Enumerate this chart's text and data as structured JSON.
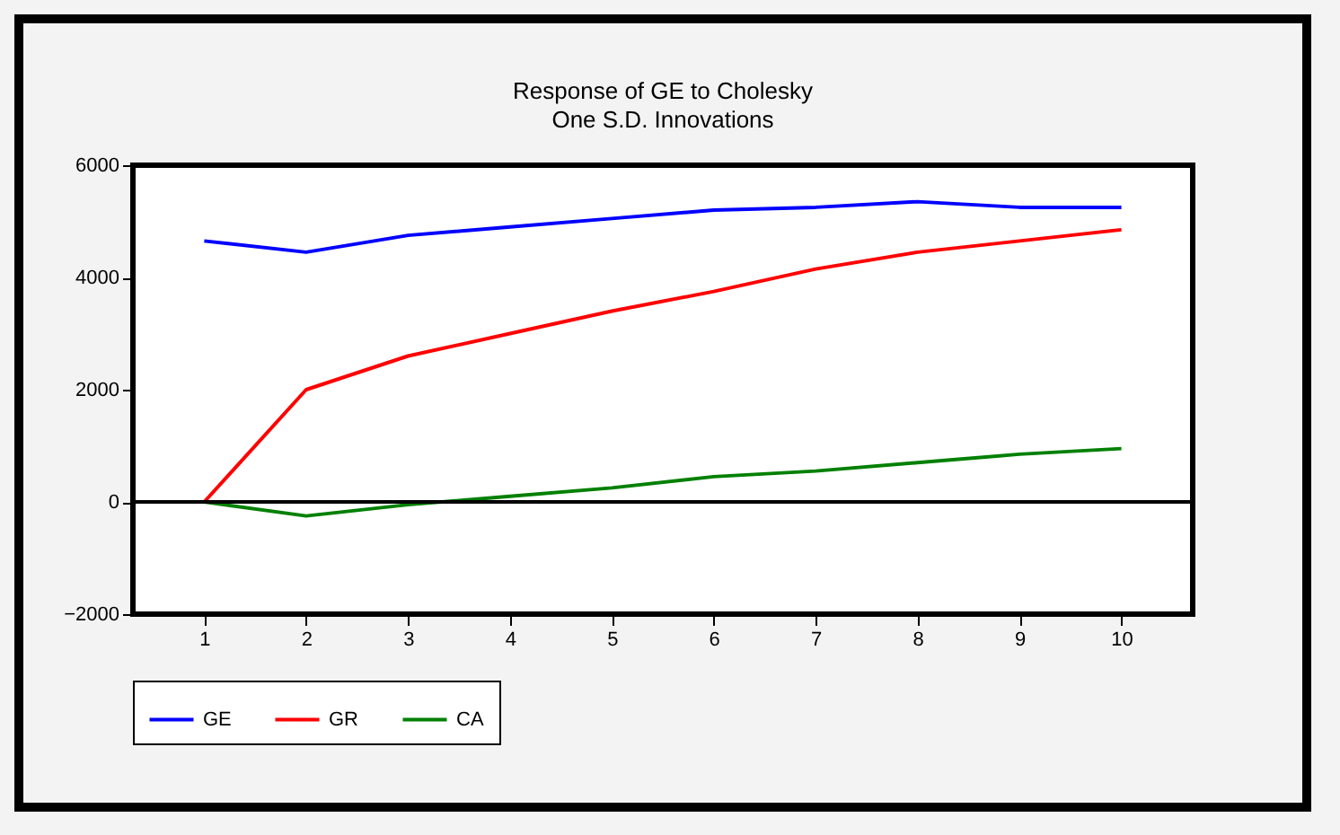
{
  "chart_data": {
    "type": "line",
    "title": "Response of GE to Cholesky",
    "subtitle": "One S.D. Innovations",
    "categories": [
      "1",
      "2",
      "3",
      "4",
      "5",
      "6",
      "7",
      "8",
      "9",
      "10"
    ],
    "series": [
      {
        "name": "GE",
        "color": "#0000ff",
        "values": [
          4650,
          4450,
          4750,
          4900,
          5050,
          5200,
          5250,
          5350,
          5250,
          5250
        ]
      },
      {
        "name": "GR",
        "color": "#ff0000",
        "values": [
          0,
          2000,
          2600,
          3000,
          3400,
          3750,
          4150,
          4450,
          4650,
          4850
        ]
      },
      {
        "name": "CA",
        "color": "#008000",
        "values": [
          0,
          -250,
          -50,
          100,
          250,
          450,
          550,
          700,
          850,
          950
        ]
      }
    ],
    "ylim": [
      -2000,
      6000
    ],
    "yticks": [
      -2000,
      0,
      2000,
      4000,
      6000
    ],
    "ref_lines": [
      {
        "axis": "y",
        "value": 0,
        "color": "#000000"
      }
    ],
    "grid": false,
    "legend": "bottom"
  }
}
